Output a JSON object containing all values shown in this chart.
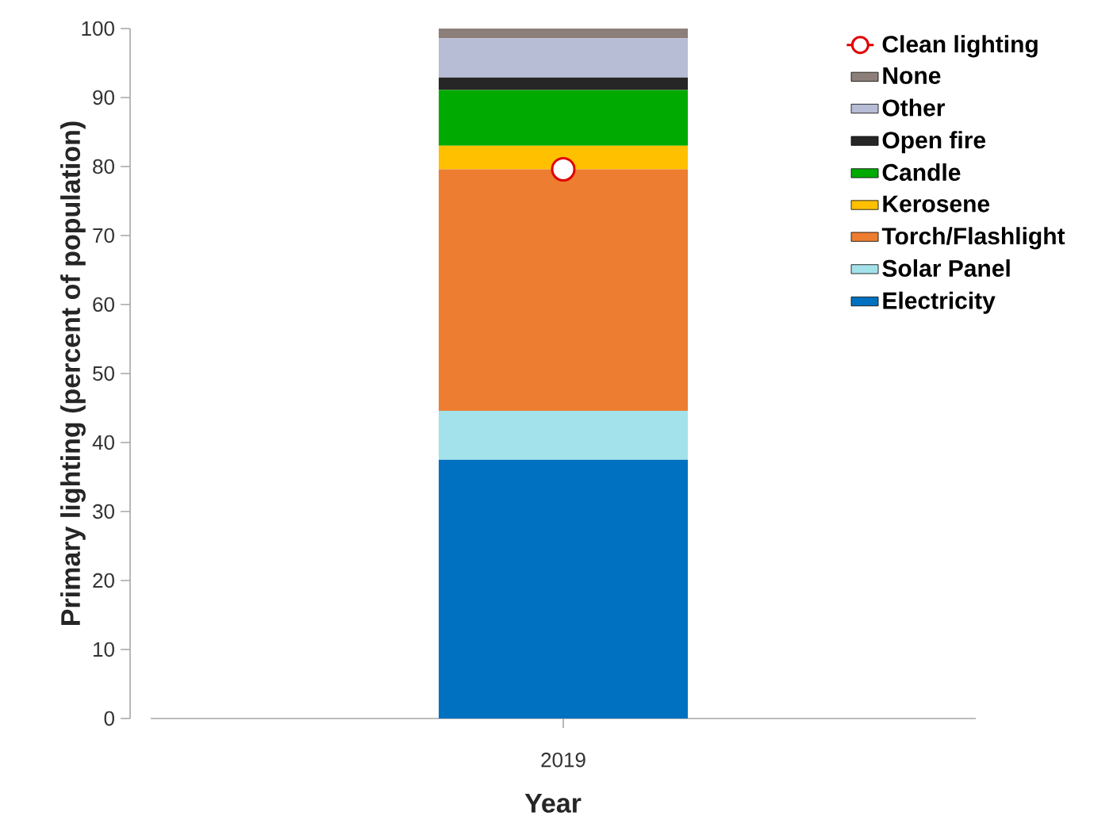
{
  "chart_data": {
    "type": "bar",
    "stacked": true,
    "xlabel": "Year",
    "ylabel": "Primary lighting (percent of population)",
    "categories": [
      "2019"
    ],
    "series": [
      {
        "name": "Electricity",
        "color": "#0070c0",
        "values": [
          37.5
        ]
      },
      {
        "name": "Solar Panel",
        "color": "#a3e2ea",
        "values": [
          7.1
        ]
      },
      {
        "name": "Torch/Flashlight",
        "color": "#ed7d31",
        "values": [
          35.0
        ]
      },
      {
        "name": "Kerosene",
        "color": "#ffc000",
        "values": [
          3.4
        ]
      },
      {
        "name": "Candle",
        "color": "#00aa00",
        "values": [
          8.1
        ]
      },
      {
        "name": "Open fire",
        "color": "#262626",
        "values": [
          1.8
        ]
      },
      {
        "name": "Other",
        "color": "#b8bdd6",
        "values": [
          5.7
        ]
      },
      {
        "name": "None",
        "color": "#8c7e78",
        "values": [
          1.4
        ]
      },
      {
        "name": "Clean lighting",
        "type": "scatter",
        "marker": "circle",
        "color": "#e00000",
        "values": [
          79.6
        ]
      }
    ],
    "ylim": [
      0,
      100
    ],
    "yticks": [
      {
        "value": 0,
        "label": "0"
      },
      {
        "value": 10,
        "label": "10"
      },
      {
        "value": 20,
        "label": "20"
      },
      {
        "value": 30,
        "label": "30"
      },
      {
        "value": 40,
        "label": "40"
      },
      {
        "value": 50,
        "label": "50"
      },
      {
        "value": 60,
        "label": "60"
      },
      {
        "value": 70,
        "label": "70"
      },
      {
        "value": 80,
        "label": "80"
      },
      {
        "value": 90,
        "label": "90"
      },
      {
        "value": 100,
        "label": "100"
      }
    ],
    "legend": "top right"
  }
}
